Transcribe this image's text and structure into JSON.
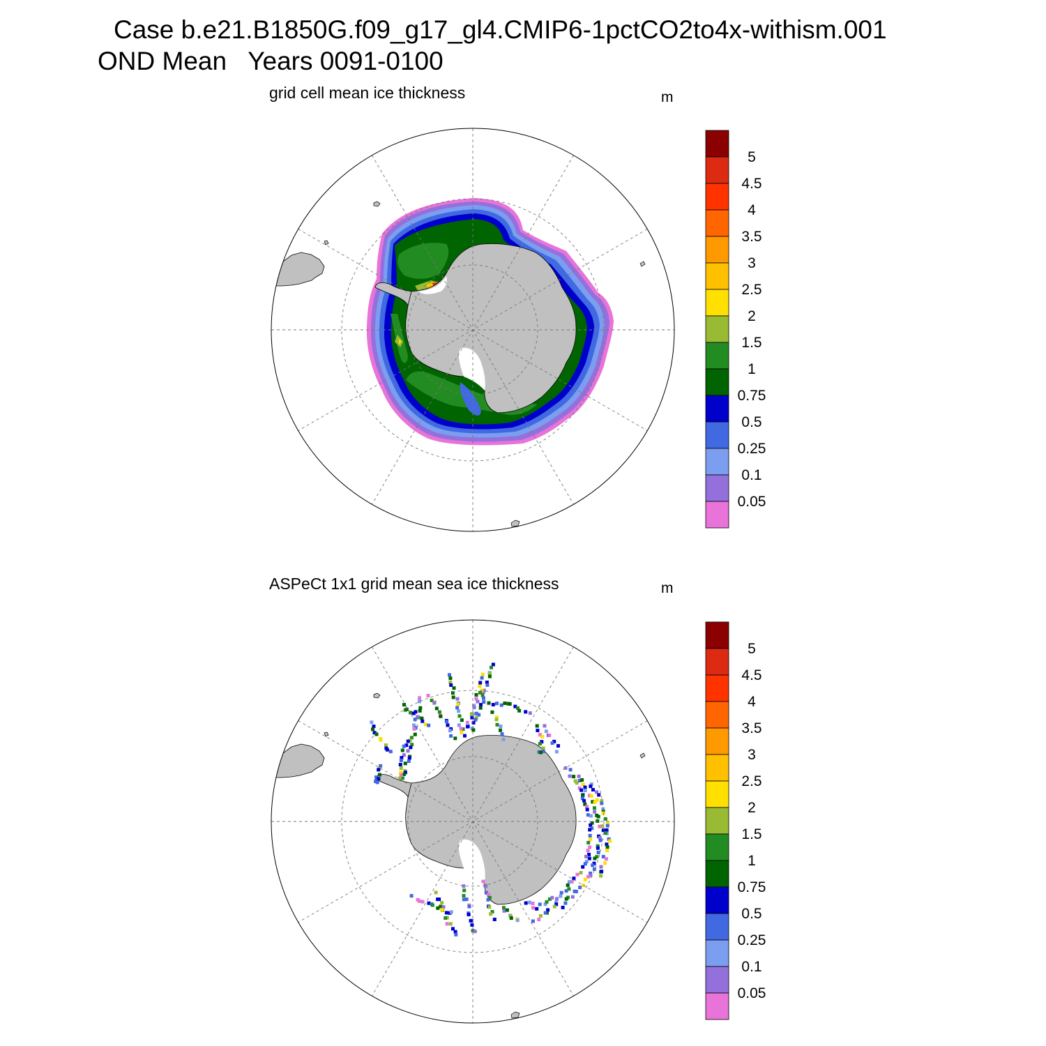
{
  "header": {
    "title_line1": "Case b.e21.B1850G.f09_g17_gl4.CMIP6-1pctCO2to4x-withism.001",
    "title_line2": "OND Mean   Years 0091-0100"
  },
  "panels": [
    {
      "title": "grid cell mean ice thickness",
      "units": "m",
      "field": "model sea ice thickness (continuous ring around Antarctica)"
    },
    {
      "title": "ASPeCt 1x1 grid mean sea ice thickness",
      "units": "m",
      "field": "observational ship-track sea ice thickness (sparse tracks)"
    }
  ],
  "colorbar": {
    "labels": [
      "5",
      "4.5",
      "4",
      "3.5",
      "3",
      "2.5",
      "2",
      "1.5",
      "1",
      "0.75",
      "0.5",
      "0.25",
      "0.1",
      "0.05"
    ],
    "colors_top_to_bottom": [
      "#8b0000",
      "#dd2a12",
      "#ff3300",
      "#ff6600",
      "#ff9900",
      "#ffc000",
      "#ffe000",
      "#99bb33",
      "#228b22",
      "#006400",
      "#0000cc",
      "#4169e1",
      "#7b9ef0",
      "#9370db",
      "#e873d9"
    ]
  },
  "map_colors": {
    "land": "#c0c0c0",
    "ocean": "#ffffff",
    "grid": "#777777"
  }
}
